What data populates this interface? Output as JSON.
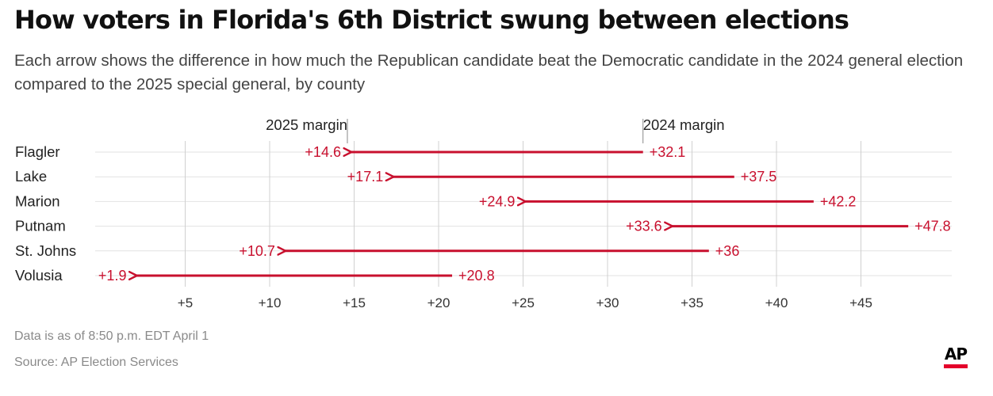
{
  "header": {
    "title": "How voters in Florida's 6th District swung between elections",
    "subtitle": "Each arrow shows the difference in how much the Republican candidate beat the Democratic candidate in the 2024 general election compared to the 2025 special general, by county"
  },
  "chart_data": {
    "type": "arrow",
    "series_labels": {
      "start": "2024 margin",
      "end": "2025 margin"
    },
    "categories": [
      "Flagler",
      "Lake",
      "Marion",
      "Putnam",
      "St. Johns",
      "Volusia"
    ],
    "margin_2024": [
      32.1,
      37.5,
      42.2,
      47.8,
      36,
      20.8
    ],
    "margin_2025": [
      14.6,
      17.1,
      24.9,
      33.6,
      10.7,
      1.9
    ],
    "labels_2024": [
      "+32.1",
      "+37.5",
      "+42.2",
      "+47.8",
      "+36",
      "+20.8"
    ],
    "labels_2025": [
      "+14.6",
      "+17.1",
      "+24.9",
      "+33.6",
      "+10.7",
      "+1.9"
    ],
    "x_ticks": [
      5,
      10,
      15,
      20,
      25,
      30,
      35,
      40,
      45
    ],
    "x_tick_labels": [
      "+5",
      "+10",
      "+15",
      "+20",
      "+25",
      "+30",
      "+35",
      "+40",
      "+45"
    ],
    "xlim": [
      0,
      50
    ],
    "grid": true,
    "colors": {
      "arrow": "#c8102e",
      "grid": "#d0d0d0",
      "text": "#222222"
    }
  },
  "footer": {
    "note": "Data is as of 8:50 p.m. EDT April 1",
    "source": "Source: AP Election Services",
    "logo_text": "AP"
  }
}
